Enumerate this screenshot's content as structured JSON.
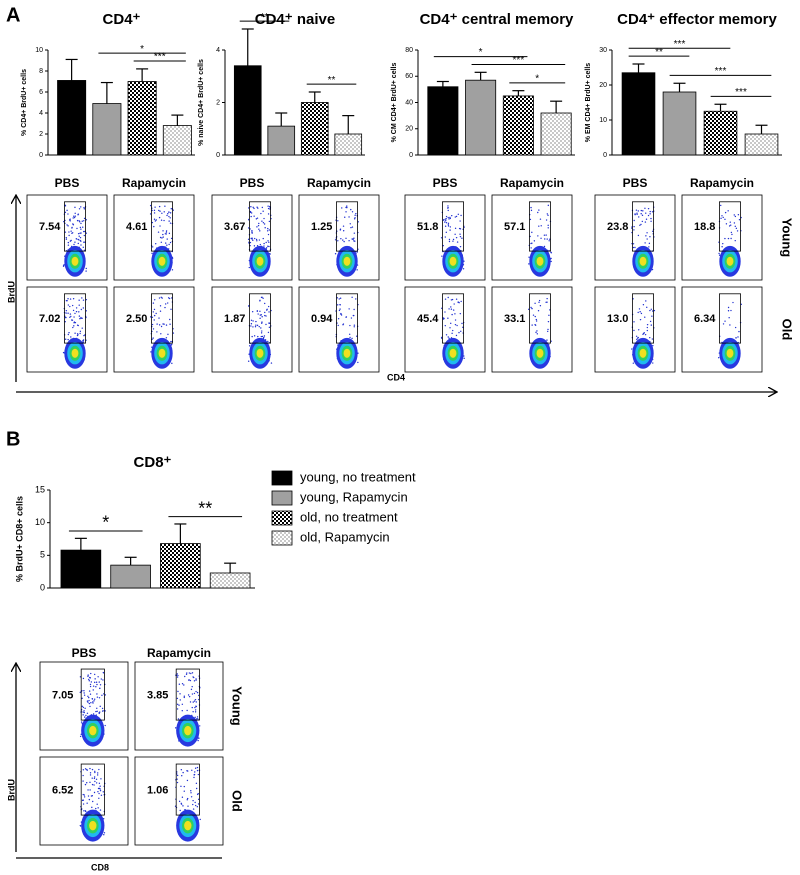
{
  "panel_labels": [
    "A",
    "B"
  ],
  "chart_data": [
    {
      "type": "bar",
      "title": "CD4⁺",
      "y_label": "% CD4+ BrdU+ cells",
      "values": [
        7.1,
        4.9,
        7.0,
        2.8
      ],
      "errors": [
        2.0,
        2.0,
        1.2,
        1.0
      ],
      "colors": [
        "#000000",
        "#a0a0a0",
        "#000000",
        "#c8c8c8"
      ],
      "fills": [
        "solid",
        "solid",
        "checker",
        "checker"
      ],
      "ylim": [
        0,
        10
      ],
      "yticks": [
        0,
        2,
        4,
        6,
        8,
        10
      ],
      "significance": [
        {
          "from": 2,
          "to": 3,
          "label": "***"
        },
        {
          "from": 1,
          "to": 3,
          "label": "*"
        }
      ]
    },
    {
      "type": "bar",
      "title": "CD4⁺ naive",
      "y_label": "% naive CD4+ BrdU+ cells",
      "values": [
        3.4,
        1.1,
        2.0,
        0.8
      ],
      "errors": [
        1.4,
        0.5,
        0.4,
        0.7
      ],
      "colors": [
        "#000000",
        "#a0a0a0",
        "#000000",
        "#c8c8c8"
      ],
      "fills": [
        "solid",
        "solid",
        "checker",
        "checker"
      ],
      "ylim": [
        0,
        4
      ],
      "yticks": [
        0,
        2,
        4
      ],
      "significance": [
        {
          "from": 0,
          "to": 1,
          "label": "**"
        },
        {
          "from": 2,
          "to": 3,
          "label": "**"
        }
      ]
    },
    {
      "type": "bar",
      "title": "CD4⁺ central memory",
      "y_label": "% CM CD4+ BrdU+ cells",
      "values": [
        52,
        57,
        45,
        32
      ],
      "errors": [
        4,
        6,
        4,
        9
      ],
      "colors": [
        "#000000",
        "#a0a0a0",
        "#000000",
        "#c8c8c8"
      ],
      "fills": [
        "solid",
        "solid",
        "checker",
        "checker"
      ],
      "ylim": [
        0,
        80
      ],
      "yticks": [
        0,
        20,
        40,
        60,
        80
      ],
      "significance": [
        {
          "from": 2,
          "to": 3,
          "label": "*"
        },
        {
          "from": 1,
          "to": 3,
          "label": "***"
        },
        {
          "from": 0,
          "to": 2,
          "label": "*"
        }
      ]
    },
    {
      "type": "bar",
      "title": "CD4⁺ effector memory",
      "y_label": "% EM CD4+ BrdU+ cells",
      "values": [
        23.5,
        18,
        12.5,
        6
      ],
      "errors": [
        2.5,
        2.5,
        2,
        2.5
      ],
      "colors": [
        "#000000",
        "#a0a0a0",
        "#000000",
        "#c8c8c8"
      ],
      "fills": [
        "solid",
        "solid",
        "checker",
        "checker"
      ],
      "ylim": [
        0,
        30
      ],
      "yticks": [
        0,
        10,
        20,
        30
      ],
      "significance": [
        {
          "from": 0,
          "to": 1,
          "label": "**"
        },
        {
          "from": 2,
          "to": 3,
          "label": "***"
        },
        {
          "from": 1,
          "to": 3,
          "label": "***"
        },
        {
          "from": 0,
          "to": 2,
          "label": "***"
        }
      ]
    },
    {
      "type": "bar",
      "title": "CD8⁺",
      "y_label": "% BrdU+ CD8+ cells",
      "values": [
        5.8,
        3.5,
        6.8,
        2.3
      ],
      "errors": [
        1.8,
        1.2,
        3.0,
        1.5
      ],
      "colors": [
        "#000000",
        "#a0a0a0",
        "#000000",
        "#c8c8c8"
      ],
      "fills": [
        "solid",
        "solid",
        "checker",
        "checker"
      ],
      "ylim": [
        0,
        15
      ],
      "yticks": [
        0,
        5,
        10,
        15
      ],
      "significance": [
        {
          "from": 0,
          "to": 1,
          "label": "*"
        },
        {
          "from": 2,
          "to": 3,
          "label": "**"
        }
      ],
      "legend": [
        "young, no treatment",
        "young, Rapamycin",
        "old, no treatment",
        "old, Rapamycin"
      ]
    }
  ],
  "flow_a": {
    "columns": [
      "PBS",
      "Rapamycin"
    ],
    "rows": [
      "Young",
      "Old"
    ],
    "y_label": "BrdU",
    "x_label": "CD4",
    "groups": [
      [
        [
          "7.54",
          "4.61"
        ],
        [
          "7.02",
          "2.50"
        ]
      ],
      [
        [
          "3.67",
          "1.25"
        ],
        [
          "1.87",
          "0.94"
        ]
      ],
      [
        [
          "51.8",
          "57.1"
        ],
        [
          "45.4",
          "33.1"
        ]
      ],
      [
        [
          "23.8",
          "18.8"
        ],
        [
          "13.0",
          "6.34"
        ]
      ]
    ]
  },
  "flow_b": {
    "columns": [
      "PBS",
      "Rapamycin"
    ],
    "rows": [
      "Young",
      "Old"
    ],
    "y_label": "BrdU",
    "x_label": "CD8",
    "groups": [
      [
        [
          "7.05",
          "3.85"
        ],
        [
          "6.52",
          "1.06"
        ]
      ]
    ]
  }
}
